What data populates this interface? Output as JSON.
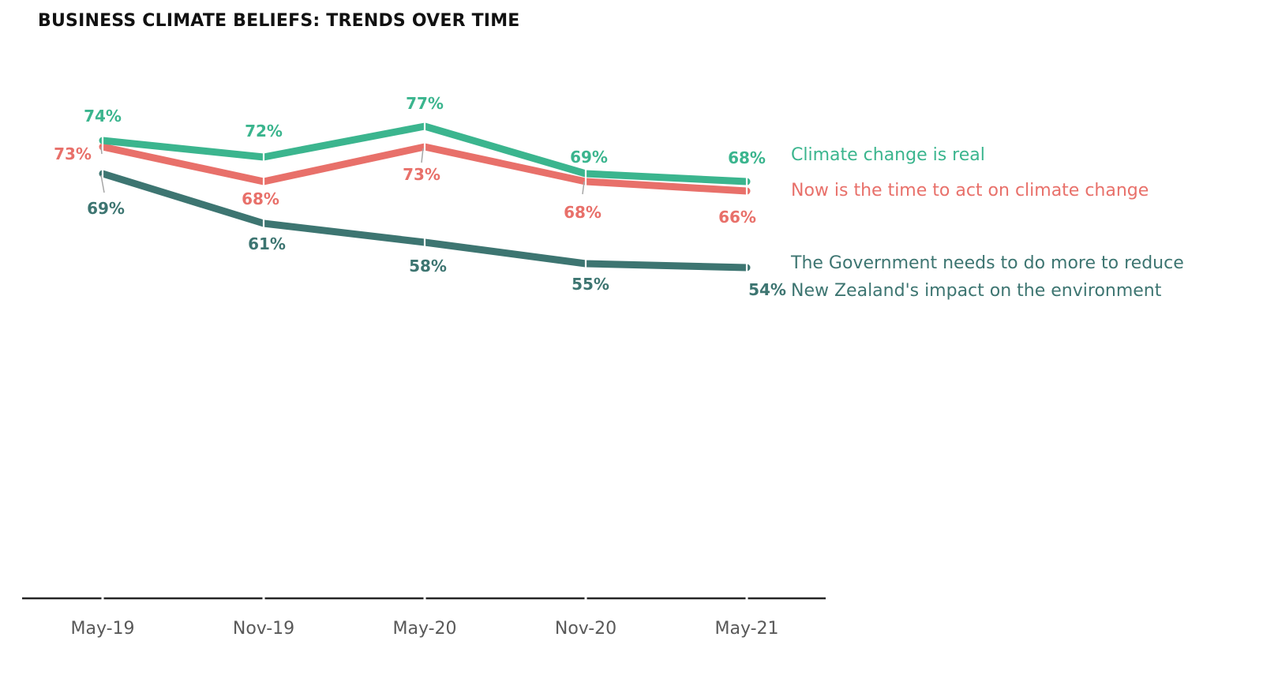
{
  "title": "BUSINESS CLIMATE BELIEFS: TRENDS OVER TIME",
  "chart_data": {
    "type": "line",
    "title": "BUSINESS CLIMATE BELIEFS: TRENDS OVER TIME",
    "xlabel": "",
    "ylabel": "",
    "categories": [
      "May-19",
      "Nov-19",
      "May-20",
      "Nov-20",
      "May-21"
    ],
    "ylim": [
      0,
      100
    ],
    "grid": false,
    "legend": "right",
    "series": [
      {
        "name": "Climate change is real",
        "color": "#3bb58e",
        "values": [
          74,
          72,
          77,
          69,
          68
        ],
        "labels": [
          "74%",
          "72%",
          "77%",
          "69%",
          "68%"
        ]
      },
      {
        "name": "Now is the time to act on climate change",
        "color": "#e8706a",
        "values": [
          73,
          68,
          73,
          68,
          66
        ],
        "labels": [
          "73%",
          "68%",
          "73%",
          "68%",
          "66%"
        ]
      },
      {
        "name": "The Government needs to do more to reduce New Zealand's impact on the environment",
        "legend_lines": [
          "The Government needs to do more to reduce",
          "New Zealand's impact on the environment"
        ],
        "color": "#3d7571",
        "values": [
          69,
          61,
          58,
          55,
          54
        ],
        "labels": [
          "69%",
          "61%",
          "58%",
          "55%",
          "54%"
        ]
      }
    ]
  }
}
